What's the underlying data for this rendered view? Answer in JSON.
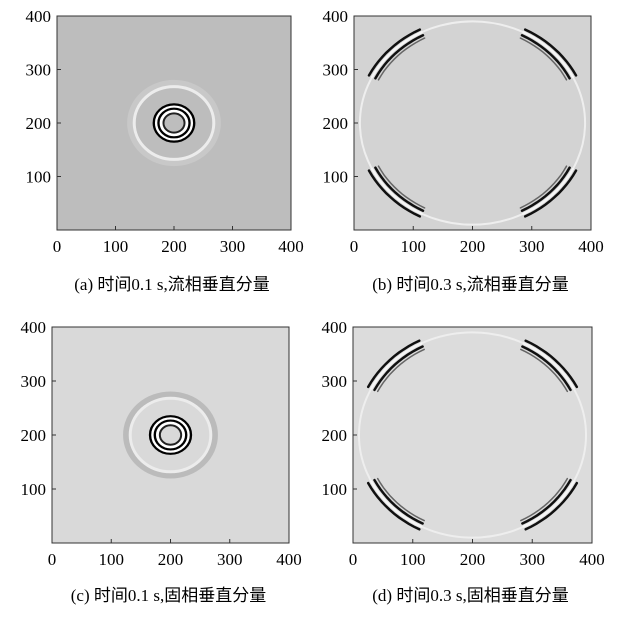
{
  "chart_data": [
    {
      "type": "wavefield",
      "caption": "(a)  时间0.1 s,流相垂直分量",
      "color": "#bdbdbd",
      "xlim": [
        0,
        400
      ],
      "ylim": [
        0,
        400
      ],
      "xticks": [
        0,
        100,
        200,
        300,
        400
      ],
      "yticks": [
        100,
        200,
        300,
        400
      ]
    },
    {
      "type": "wavefield",
      "caption": "(b)  时间0.3 s,流相垂直分量",
      "color": "#d3d3d3",
      "xlim": [
        0,
        400
      ],
      "ylim": [
        0,
        400
      ],
      "xticks": [
        0,
        100,
        200,
        300,
        400
      ],
      "yticks": [
        100,
        200,
        300,
        400
      ]
    },
    {
      "type": "wavefield",
      "caption": "(c)  时间0.1 s,固相垂直分量",
      "color": "#d9d9d9",
      "xlim": [
        0,
        400
      ],
      "ylim": [
        0,
        400
      ],
      "xticks": [
        0,
        100,
        200,
        300,
        400
      ],
      "yticks": [
        100,
        200,
        300,
        400
      ]
    },
    {
      "type": "wavefield",
      "caption": "(d)  时间0.3 s,固相垂直分量",
      "color": "#dcdcdc",
      "xlim": [
        0,
        400
      ],
      "ylim": [
        0,
        400
      ],
      "xticks": [
        0,
        100,
        200,
        300,
        400
      ],
      "yticks": [
        100,
        200,
        300,
        400
      ]
    }
  ]
}
